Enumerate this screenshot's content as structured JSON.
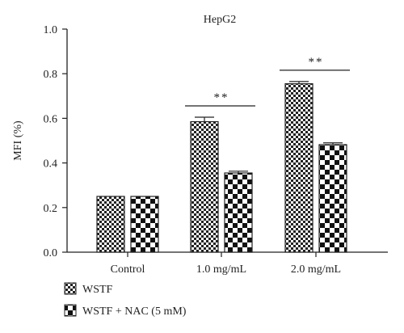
{
  "chart_data": {
    "type": "bar",
    "title": "HepG2",
    "ylabel": "MFI (%)",
    "xlabel": "",
    "ylim": [
      0,
      1.0
    ],
    "yticks": [
      "0.0",
      "0.2",
      "0.4",
      "0.6",
      "0.8",
      "1.0"
    ],
    "categories": [
      "Control",
      "1.0 mg/mL",
      "2.0 mg/mL"
    ],
    "series": [
      {
        "name": "WSTF",
        "values": [
          0.25,
          0.585,
          0.755
        ],
        "errors": [
          0,
          0.02,
          0.01
        ],
        "pattern": "fine-checker"
      },
      {
        "name": "WSTF + NAC (5 mM)",
        "values": [
          0.25,
          0.355,
          0.482
        ],
        "errors": [
          0,
          0.008,
          0.008
        ],
        "pattern": "coarse-checker"
      }
    ],
    "significance": [
      {
        "category": "1.0 mg/mL",
        "label": "**"
      },
      {
        "category": "2.0 mg/mL",
        "label": "**"
      }
    ],
    "legend_position": "bottom-left",
    "grid": false
  }
}
